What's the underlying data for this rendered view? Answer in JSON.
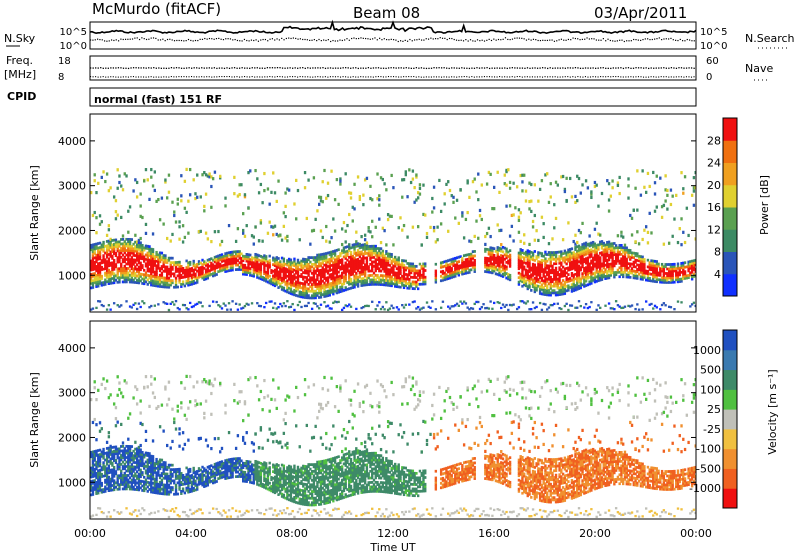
{
  "header": {
    "station": "McMurdo (fitACF)",
    "beam": "Beam 08",
    "date": "03/Apr/2011"
  },
  "status_panels": {
    "left_labels": {
      "nsky": "N.Sky",
      "freq": "Freq.",
      "mhz": "[MHz]",
      "cpid": "CPID"
    },
    "right_labels": {
      "nsearch": "N.Search",
      "nave": "Nave"
    },
    "noise_ticks_left": [
      "10^5",
      "10^0"
    ],
    "noise_ticks_right": [
      "10^5",
      "10^0"
    ],
    "freq_ticks": [
      "18",
      "8"
    ],
    "nave_ticks": [
      "60",
      "0"
    ],
    "cpid_text": "normal (fast) 151 RF"
  },
  "chart_data": [
    {
      "type": "heatmap",
      "title": "",
      "xlabel": "Time UT",
      "ylabel": "Slant Range [km]",
      "x_ticks": [
        "00:00",
        "04:00",
        "08:00",
        "12:00",
        "16:00",
        "20:00",
        "00:00"
      ],
      "x_range_hours": [
        0,
        24
      ],
      "y_ticks": [
        "1000",
        "2000",
        "3000",
        "4000"
      ],
      "ylim": [
        180,
        4600
      ],
      "colorbar": {
        "label": "Power [dB]",
        "ticks": [
          "4",
          "8",
          "12",
          "16",
          "20",
          "24",
          "28"
        ],
        "range": [
          0,
          32
        ],
        "colors": [
          "#1030ff",
          "#2a55b8",
          "#3c8a64",
          "#5aa050",
          "#e0d030",
          "#f0a020",
          "#f07010",
          "#f01010"
        ]
      }
    },
    {
      "type": "heatmap",
      "title": "",
      "xlabel": "Time UT",
      "ylabel": "Slant Range [km]",
      "x_ticks": [
        "00:00",
        "04:00",
        "08:00",
        "12:00",
        "16:00",
        "20:00",
        "00:00"
      ],
      "x_range_hours": [
        0,
        24
      ],
      "y_ticks": [
        "1000",
        "2000",
        "3000",
        "4000"
      ],
      "ylim": [
        180,
        4600
      ],
      "colorbar": {
        "label": "Velocity [m s⁻¹]",
        "ticks": [
          "1000",
          "500",
          "100",
          "25",
          "-25",
          "-100",
          "-500",
          "-1000"
        ],
        "colors": [
          "#2050c0",
          "#3a7ab0",
          "#3e8a68",
          "#50c040",
          "#c0c0b8",
          "#f0c040",
          "#f09030",
          "#f06020",
          "#f01010"
        ]
      }
    }
  ]
}
